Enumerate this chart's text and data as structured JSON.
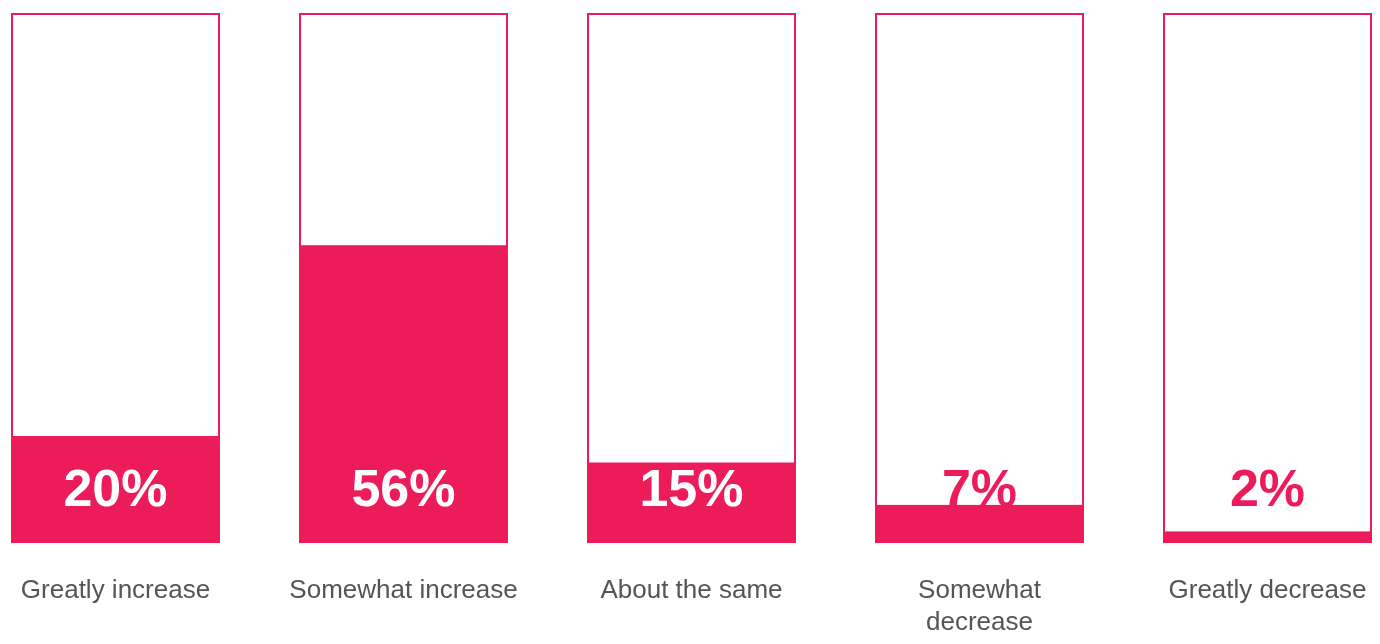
{
  "chart_data": {
    "type": "bar",
    "categories": [
      "Greatly increase",
      "Somewhat increase",
      "About the same",
      "Somewhat decrease",
      "Greatly decrease"
    ],
    "stacked": true,
    "ylim": [
      0,
      100
    ],
    "tick_labels": "x",
    "series": [
      {
        "color": "#ec1c5b",
        "values": [
          20,
          56,
          15,
          7,
          2
        ],
        "value_labels": [
          "20%",
          "56%",
          "15%",
          "7%",
          "2%"
        ]
      },
      {
        "color": "#ffffff",
        "values": [
          80,
          44,
          85,
          93,
          98
        ]
      }
    ]
  }
}
